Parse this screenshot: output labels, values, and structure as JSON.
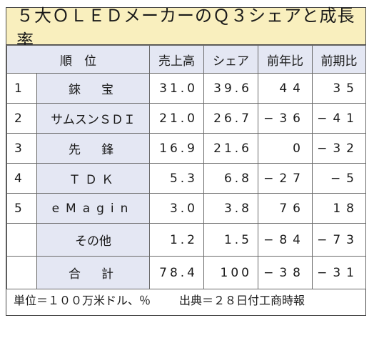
{
  "title": "５大ＯＬＥＤメーカーのＱ３シェアと成長率",
  "columns": {
    "rank_company": "順　位",
    "sales": "売上高",
    "share": "シェア",
    "yoy": "前年比",
    "qoq": "前期比"
  },
  "rows": [
    {
      "rank": "1",
      "company": "錸　宝",
      "sales": "31.0",
      "share": "39.6",
      "yoy": "44",
      "qoq": "35"
    },
    {
      "rank": "2",
      "company": "サムスンＳＤＩ",
      "sales": "21.0",
      "share": "26.7",
      "yoy": "−36",
      "qoq": "−41"
    },
    {
      "rank": "3",
      "company": "先　鋒",
      "sales": "16.9",
      "share": "21.6",
      "yoy": "0",
      "qoq": "−32"
    },
    {
      "rank": "4",
      "company": "ＴＤＫ",
      "sales": "5.3",
      "share": "6.8",
      "yoy": "−27",
      "qoq": "−5"
    },
    {
      "rank": "5",
      "company": "eMagin",
      "sales": "3.0",
      "share": "3.8",
      "yoy": "76",
      "qoq": "18"
    },
    {
      "rank": "",
      "company": "その他",
      "sales": "1.2",
      "share": "1.5",
      "yoy": "−84",
      "qoq": "−73"
    },
    {
      "rank": "",
      "company": "合　計",
      "sales": "78.4",
      "share": "100",
      "yoy": "−38",
      "qoq": "−31"
    }
  ],
  "footer": {
    "unit": "単位＝１００万米ドル、％",
    "source": "出典＝２８日付工商時報"
  },
  "colors": {
    "title_bg": "#f9efbe",
    "header_bg": "#e4e7f3",
    "border": "#4a4a4a"
  }
}
